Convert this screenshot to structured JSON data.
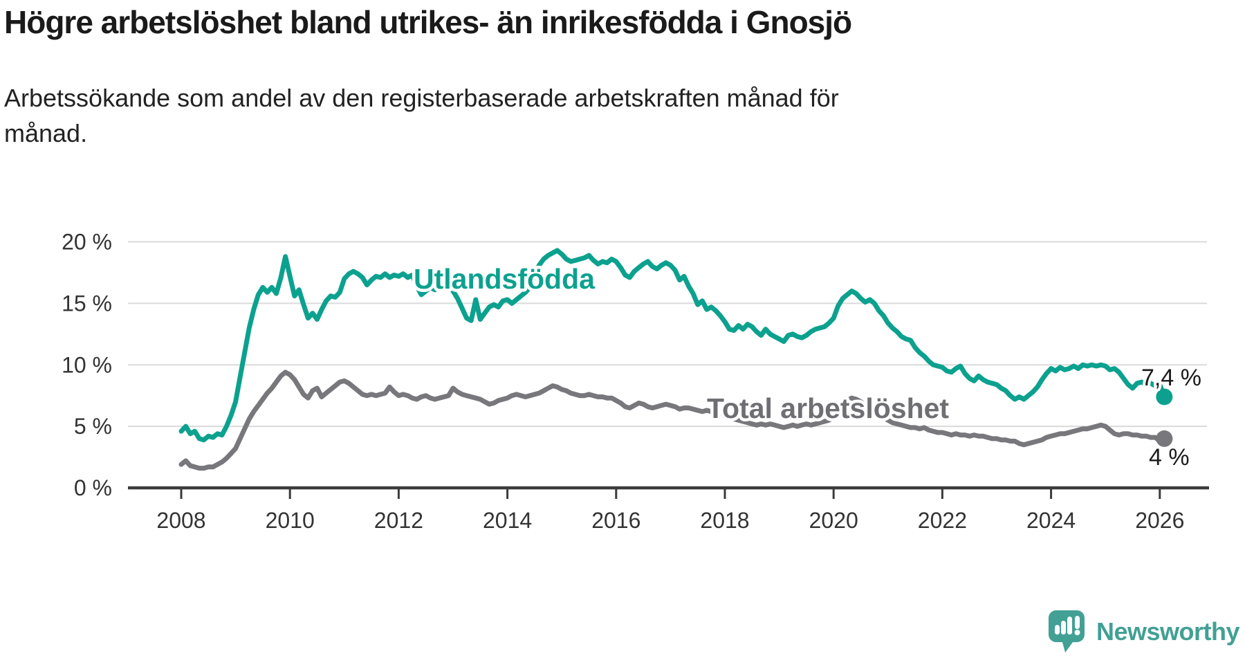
{
  "header": {
    "title": "Högre arbetslöshet bland utrikes- än inrikesfödda i Gnosjö",
    "subtitle_line1": "Arbetssökande som andel av den registerbaserade arbetskraften månad för",
    "subtitle_line2": "månad."
  },
  "footer": {
    "brand": "Newsworthy"
  },
  "colors": {
    "foreign_born_line": "#0ca18f",
    "total_line": "#77777c",
    "total_label": "#6e6e73",
    "axis": "#3b3b3b",
    "grid": "#dadada",
    "tick_text": "#333333",
    "value_text": "#1a1a1a",
    "logo_teal": "#42a094"
  },
  "chart_data": {
    "type": "line",
    "title": "Högre arbetslöshet bland utrikes- än inrikesfödda i Gnosjö",
    "subtitle": "Arbetssökande som andel av den registerbaserade arbetskraften månad för månad.",
    "unit": "%",
    "frequency": "monthly",
    "x_start": "2008-01",
    "x_end": "2026-02",
    "ylim": [
      0,
      20
    ],
    "grid": "horizontal",
    "legend_position": "inline",
    "y_ticks": [
      {
        "value": 20,
        "label": "20 %"
      },
      {
        "value": 15,
        "label": "15 %"
      },
      {
        "value": 10,
        "label": "10 %"
      },
      {
        "value": 5,
        "label": "5 %"
      },
      {
        "value": 0,
        "label": "0 %"
      }
    ],
    "x_ticks": [
      {
        "year": 2008,
        "label": "2008"
      },
      {
        "year": 2010,
        "label": "2010"
      },
      {
        "year": 2012,
        "label": "2012"
      },
      {
        "year": 2014,
        "label": "2014"
      },
      {
        "year": 2016,
        "label": "2016"
      },
      {
        "year": 2018,
        "label": "2018"
      },
      {
        "year": 2020,
        "label": "2020"
      },
      {
        "year": 2022,
        "label": "2022"
      },
      {
        "year": 2024,
        "label": "2024"
      },
      {
        "year": 2026,
        "label": "2026"
      }
    ],
    "series": [
      {
        "name": "Utlandsfödda",
        "end_label": "7,4 %",
        "last_value": 7.4,
        "values": [
          4.6,
          5.0,
          4.4,
          4.6,
          4.0,
          3.9,
          4.2,
          4.1,
          4.4,
          4.3,
          5.0,
          5.9,
          7.0,
          9.0,
          11.0,
          13.0,
          14.5,
          15.7,
          16.3,
          15.9,
          16.3,
          15.8,
          17.1,
          18.8,
          17.2,
          15.6,
          16.1,
          14.9,
          13.8,
          14.2,
          13.7,
          14.5,
          15.2,
          15.6,
          15.5,
          15.9,
          17.0,
          17.4,
          17.6,
          17.4,
          17.1,
          16.5,
          16.9,
          17.2,
          17.1,
          17.4,
          17.1,
          17.3,
          17.2,
          17.4,
          17.1,
          17.3,
          16.4,
          15.7,
          16.0,
          16.3,
          16.1,
          16.4,
          16.2,
          16.4,
          16.0,
          15.4,
          14.6,
          13.8,
          13.6,
          15.3,
          13.7,
          14.2,
          14.7,
          14.9,
          14.7,
          15.2,
          15.3,
          15.0,
          15.3,
          15.6,
          15.9,
          16.3,
          17.2,
          18.1,
          18.6,
          18.9,
          19.1,
          19.3,
          19.0,
          18.6,
          18.4,
          18.5,
          18.6,
          18.7,
          18.9,
          18.5,
          18.2,
          18.4,
          18.3,
          18.6,
          18.4,
          17.9,
          17.3,
          17.1,
          17.6,
          17.9,
          18.2,
          18.4,
          18.0,
          17.8,
          18.1,
          18.3,
          18.1,
          17.7,
          16.9,
          17.2,
          16.4,
          15.8,
          14.9,
          15.2,
          14.5,
          14.7,
          14.4,
          14.0,
          13.5,
          12.9,
          12.8,
          13.2,
          12.9,
          13.3,
          13.1,
          12.7,
          12.4,
          12.9,
          12.5,
          12.3,
          12.1,
          11.9,
          12.4,
          12.5,
          12.3,
          12.2,
          12.4,
          12.7,
          12.9,
          13.0,
          13.1,
          13.4,
          13.8,
          14.8,
          15.4,
          15.7,
          16.0,
          15.8,
          15.4,
          15.1,
          15.3,
          15.0,
          14.4,
          14.0,
          13.4,
          13.0,
          12.7,
          12.3,
          12.1,
          12.0,
          11.4,
          11.0,
          10.7,
          10.3,
          10.0,
          9.9,
          9.8,
          9.5,
          9.4,
          9.7,
          9.9,
          9.3,
          8.9,
          8.7,
          9.1,
          8.8,
          8.6,
          8.5,
          8.4,
          8.1,
          7.9,
          7.5,
          7.2,
          7.4,
          7.2,
          7.5,
          7.8,
          8.2,
          8.8,
          9.3,
          9.7,
          9.5,
          9.8,
          9.6,
          9.7,
          9.9,
          9.7,
          10.0,
          9.9,
          10.0,
          9.9,
          10.0,
          9.9,
          9.6,
          9.7,
          9.4,
          8.9,
          8.4,
          8.1,
          8.5,
          8.6,
          8.4,
          8.5,
          8.3,
          8.4,
          7.4
        ]
      },
      {
        "name": "Total arbetslöshet",
        "end_label": "4 %",
        "last_value": 4.0,
        "values": [
          1.9,
          2.2,
          1.8,
          1.7,
          1.6,
          1.6,
          1.7,
          1.7,
          1.9,
          2.1,
          2.4,
          2.8,
          3.2,
          4.0,
          4.8,
          5.6,
          6.2,
          6.7,
          7.2,
          7.7,
          8.1,
          8.6,
          9.1,
          9.4,
          9.2,
          8.8,
          8.2,
          7.6,
          7.3,
          7.9,
          8.1,
          7.4,
          7.7,
          8.0,
          8.3,
          8.6,
          8.7,
          8.5,
          8.2,
          7.9,
          7.6,
          7.5,
          7.6,
          7.5,
          7.6,
          7.7,
          8.2,
          7.8,
          7.5,
          7.6,
          7.5,
          7.3,
          7.2,
          7.4,
          7.5,
          7.3,
          7.2,
          7.3,
          7.4,
          7.5,
          8.1,
          7.8,
          7.6,
          7.5,
          7.4,
          7.3,
          7.2,
          7.0,
          6.8,
          6.9,
          7.1,
          7.2,
          7.3,
          7.5,
          7.6,
          7.5,
          7.4,
          7.5,
          7.6,
          7.7,
          7.9,
          8.1,
          8.3,
          8.2,
          8.0,
          7.9,
          7.7,
          7.6,
          7.5,
          7.5,
          7.6,
          7.5,
          7.4,
          7.4,
          7.3,
          7.3,
          7.1,
          6.9,
          6.6,
          6.5,
          6.7,
          6.9,
          6.8,
          6.6,
          6.5,
          6.6,
          6.7,
          6.8,
          6.7,
          6.6,
          6.4,
          6.5,
          6.5,
          6.4,
          6.3,
          6.2,
          6.3,
          6.2,
          6.2,
          6.1,
          6.0,
          5.8,
          5.6,
          5.5,
          5.4,
          5.3,
          5.2,
          5.1,
          5.2,
          5.1,
          5.2,
          5.1,
          5.0,
          4.9,
          5.0,
          5.1,
          5.0,
          5.1,
          5.2,
          5.1,
          5.2,
          5.3,
          5.4,
          5.5,
          5.7,
          6.1,
          6.6,
          7.1,
          7.3,
          7.2,
          7.0,
          6.7,
          6.4,
          6.1,
          5.9,
          5.7,
          5.5,
          5.3,
          5.2,
          5.1,
          5.0,
          4.9,
          4.9,
          4.8,
          4.9,
          4.7,
          4.6,
          4.5,
          4.5,
          4.4,
          4.3,
          4.4,
          4.3,
          4.3,
          4.2,
          4.3,
          4.2,
          4.2,
          4.1,
          4.0,
          4.0,
          3.9,
          3.9,
          3.8,
          3.8,
          3.6,
          3.5,
          3.6,
          3.7,
          3.8,
          3.9,
          4.1,
          4.2,
          4.3,
          4.4,
          4.4,
          4.5,
          4.6,
          4.7,
          4.8,
          4.8,
          4.9,
          5.0,
          5.1,
          5.0,
          4.7,
          4.4,
          4.3,
          4.4,
          4.4,
          4.3,
          4.3,
          4.2,
          4.2,
          4.1,
          4.1,
          3.8,
          4.0
        ]
      }
    ]
  }
}
